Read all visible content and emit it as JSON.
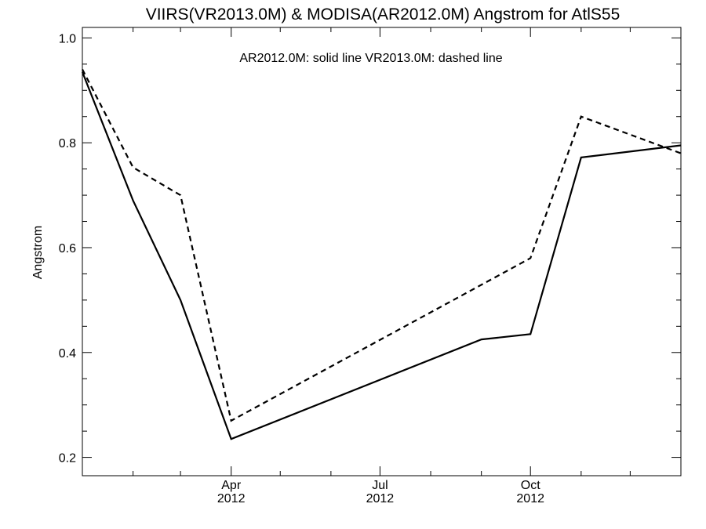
{
  "chart_data": {
    "type": "line",
    "title": "VIIRS(VR2013.0M) & MODISA(AR2012.0M)  Angstrom for AtlS55",
    "annotation": "AR2012.0M: solid line   VR2013.0M: dashed line",
    "xlabel": "",
    "ylabel": "Angstrom",
    "xlim": [
      "2012-01-01",
      "2013-01-01"
    ],
    "ylim": [
      0.165,
      1.02
    ],
    "yticks": [
      0.2,
      0.4,
      0.6,
      0.8,
      1.0
    ],
    "ytick_labels": [
      "0.2",
      "0.4",
      "0.6",
      "0.8",
      "1.0"
    ],
    "xticks": [
      {
        "date": "2012-04-01",
        "month": "Apr",
        "year": "2012"
      },
      {
        "date": "2012-07-01",
        "month": "Jul",
        "year": "2012"
      },
      {
        "date": "2012-10-01",
        "month": "Oct",
        "year": "2012"
      }
    ],
    "xminor_ticks": [
      "2012-02-01",
      "2012-03-01",
      "2012-05-01",
      "2012-06-01",
      "2012-08-01",
      "2012-09-01",
      "2012-11-01",
      "2012-12-01"
    ],
    "grid": false,
    "series": [
      {
        "name": "AR2012.0M",
        "style": "solid",
        "color": "#000000",
        "points": [
          {
            "x": "2012-01-01",
            "y": 0.935
          },
          {
            "x": "2012-02-01",
            "y": 0.69
          },
          {
            "x": "2012-03-01",
            "y": 0.5
          },
          {
            "x": "2012-04-01",
            "y": 0.235
          },
          {
            "x": "2012-09-01",
            "y": 0.425
          },
          {
            "x": "2012-10-01",
            "y": 0.435
          },
          {
            "x": "2012-11-01",
            "y": 0.772
          },
          {
            "x": "2013-01-01",
            "y": 0.795
          }
        ]
      },
      {
        "name": "VR2013.0M",
        "style": "dashed",
        "color": "#000000",
        "points": [
          {
            "x": "2012-01-01",
            "y": 0.94
          },
          {
            "x": "2012-02-01",
            "y": 0.753
          },
          {
            "x": "2012-03-01",
            "y": 0.7
          },
          {
            "x": "2012-04-01",
            "y": 0.27
          },
          {
            "x": "2012-10-01",
            "y": 0.58
          },
          {
            "x": "2012-11-01",
            "y": 0.85
          },
          {
            "x": "2013-01-01",
            "y": 0.78
          }
        ]
      }
    ]
  }
}
